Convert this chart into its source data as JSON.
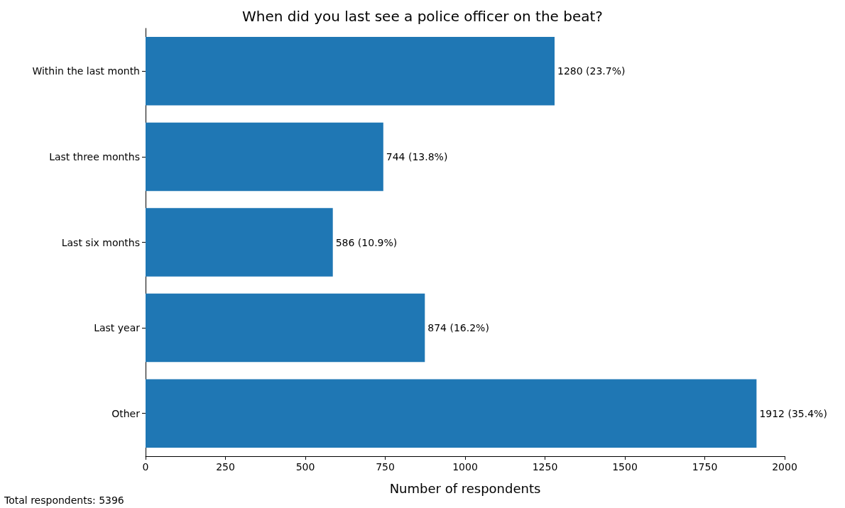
{
  "chart_data": {
    "type": "bar",
    "orientation": "horizontal",
    "title": "When did you last see a police officer on the beat?",
    "xlabel": "Number of respondents",
    "categories": [
      "Within the last month",
      "Last three months",
      "Last six months",
      "Last year",
      "Other"
    ],
    "values": [
      1280,
      744,
      586,
      874,
      1912
    ],
    "color": "#1f77b4",
    "value_labels": [
      "1280 (23.7%)",
      "744 (13.8%)",
      "586 (10.9%)",
      "874 (16.2%)",
      "1912 (35.4%)"
    ],
    "xlim": [
      0,
      2000
    ],
    "xticks": [
      0,
      250,
      500,
      750,
      1000,
      1250,
      1500,
      1750,
      2000
    ],
    "grid": false,
    "annotations": [
      "Total respondents: 5396"
    ]
  }
}
